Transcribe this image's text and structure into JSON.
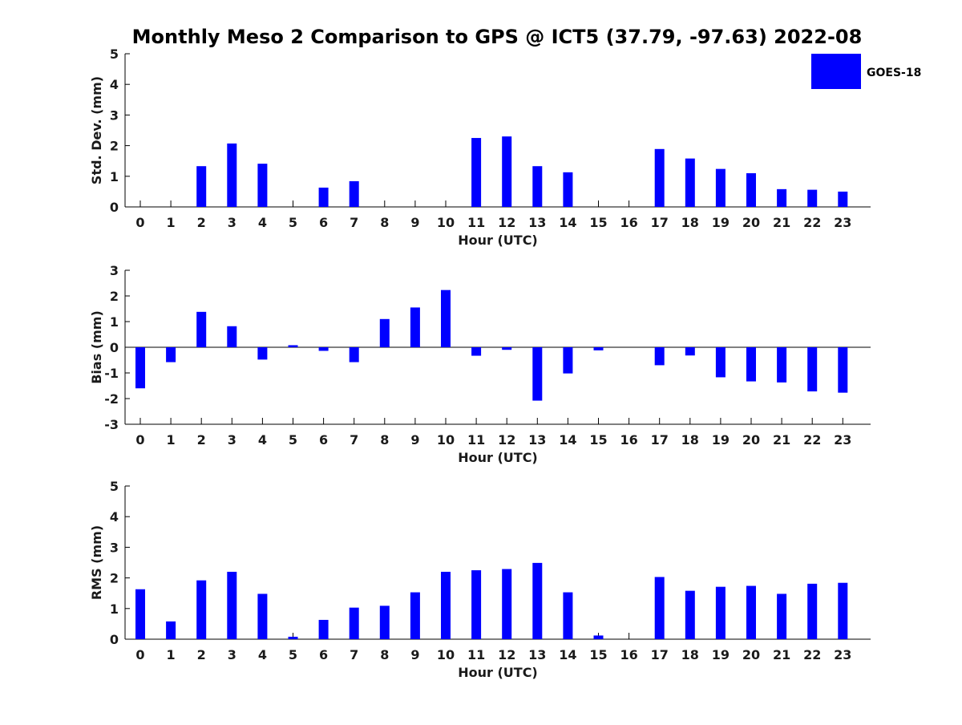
{
  "chart_data": {
    "title": "Monthly Meso 2 Comparison to GPS @ ICT5 (37.79, -97.63) 2022-08",
    "legend": {
      "entries": [
        "GOES-18"
      ],
      "placement": "top-right"
    },
    "colors": {
      "bar": "#0000ff",
      "axis": "#000000"
    },
    "panels": [
      {
        "type": "bar",
        "xlabel": "Hour (UTC)",
        "ylabel": "Std. Dev. (mm)",
        "ylim": [
          0,
          5
        ],
        "yticks": [
          "0",
          "1",
          "2",
          "3",
          "4",
          "5"
        ],
        "categories": [
          "0",
          "1",
          "2",
          "3",
          "4",
          "5",
          "6",
          "7",
          "8",
          "9",
          "10",
          "11",
          "12",
          "13",
          "14",
          "15",
          "16",
          "17",
          "18",
          "19",
          "20",
          "21",
          "22",
          "23"
        ],
        "series": [
          {
            "name": "GOES-18",
            "values": [
              null,
              null,
              1.33,
              2.07,
              1.41,
              null,
              0.63,
              0.84,
              null,
              null,
              null,
              2.25,
              2.3,
              1.33,
              1.13,
              null,
              null,
              1.89,
              1.58,
              1.24,
              1.1,
              0.58,
              0.56,
              0.5
            ]
          }
        ]
      },
      {
        "type": "bar",
        "xlabel": "Hour (UTC)",
        "ylabel": "Bias (mm)",
        "ylim": [
          -3,
          3
        ],
        "yticks": [
          "-3",
          "-2",
          "-1",
          "0",
          "1",
          "2",
          "3"
        ],
        "categories": [
          "0",
          "1",
          "2",
          "3",
          "4",
          "5",
          "6",
          "7",
          "8",
          "9",
          "10",
          "11",
          "12",
          "13",
          "14",
          "15",
          "16",
          "17",
          "18",
          "19",
          "20",
          "21",
          "22",
          "23"
        ],
        "series": [
          {
            "name": "GOES-18",
            "values": [
              -1.6,
              -0.58,
              1.38,
              0.82,
              -0.48,
              0.08,
              -0.14,
              -0.58,
              1.1,
              1.55,
              2.23,
              -0.33,
              -0.1,
              -2.08,
              -1.02,
              -0.12,
              null,
              -0.7,
              -0.32,
              -1.17,
              -1.33,
              -1.37,
              -1.72,
              -1.77
            ]
          }
        ]
      },
      {
        "type": "bar",
        "xlabel": "Hour (UTC)",
        "ylabel": "RMS (mm)",
        "ylim": [
          0,
          5
        ],
        "yticks": [
          "0",
          "1",
          "2",
          "3",
          "4",
          "5"
        ],
        "categories": [
          "0",
          "1",
          "2",
          "3",
          "4",
          "5",
          "6",
          "7",
          "8",
          "9",
          "10",
          "11",
          "12",
          "13",
          "14",
          "15",
          "16",
          "17",
          "18",
          "19",
          "20",
          "21",
          "22",
          "23"
        ],
        "series": [
          {
            "name": "GOES-18",
            "values": [
              1.63,
              0.58,
              1.92,
              2.2,
              1.48,
              0.08,
              0.63,
              1.03,
              1.09,
              1.53,
              2.2,
              2.25,
              2.29,
              2.49,
              1.53,
              0.12,
              null,
              2.03,
              1.58,
              1.71,
              1.74,
              1.48,
              1.81,
              1.84
            ]
          }
        ]
      }
    ]
  }
}
